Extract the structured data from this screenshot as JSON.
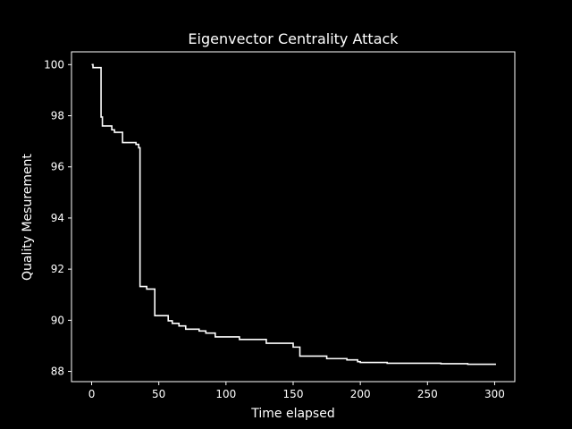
{
  "chart_data": {
    "type": "line",
    "title": "Eigenvector Centrality Attack",
    "xlabel": "Time elapsed",
    "ylabel": "Quality Mesurement",
    "xlim": [
      -15,
      315
    ],
    "ylim": [
      87.6,
      100.5
    ],
    "xticks": [
      0,
      50,
      100,
      150,
      200,
      250,
      300
    ],
    "yticks": [
      88,
      90,
      92,
      94,
      96,
      98,
      100
    ],
    "grid": false,
    "colors": {
      "background": "#000000",
      "foreground": "#ffffff",
      "line": "#ffffff"
    },
    "series": [
      {
        "x": [
          0,
          1,
          1,
          7,
          7,
          8,
          8,
          15,
          15,
          17,
          17,
          23,
          23,
          33,
          33,
          35,
          35,
          36,
          36,
          41,
          41,
          47,
          47,
          57,
          57,
          60,
          60,
          65,
          65,
          70,
          70,
          80,
          80,
          85,
          85,
          92,
          92,
          110,
          110,
          130,
          130,
          150,
          150,
          155,
          155,
          175,
          175,
          190,
          190,
          198,
          198,
          200,
          200,
          220,
          220,
          260,
          260,
          280,
          280,
          301
        ],
        "y": [
          100.0,
          100.0,
          99.88,
          99.88,
          97.95,
          97.95,
          97.6,
          97.6,
          97.45,
          97.45,
          97.35,
          97.35,
          96.95,
          96.95,
          96.88,
          96.88,
          96.75,
          96.75,
          91.32,
          91.32,
          91.22,
          91.22,
          90.18,
          90.18,
          89.98,
          89.98,
          89.88,
          89.88,
          89.78,
          89.78,
          89.65,
          89.65,
          89.58,
          89.58,
          89.5,
          89.5,
          89.35,
          89.35,
          89.25,
          89.25,
          89.1,
          89.1,
          88.95,
          88.95,
          88.6,
          88.6,
          88.5,
          88.5,
          88.45,
          88.45,
          88.38,
          88.38,
          88.35,
          88.35,
          88.32,
          88.32,
          88.3,
          88.3,
          88.28,
          88.28
        ]
      }
    ]
  }
}
